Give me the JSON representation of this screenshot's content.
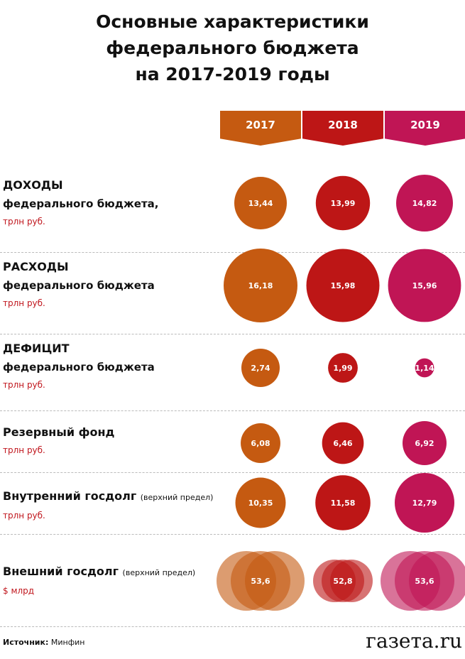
{
  "title_lines": [
    "Основные характеристики",
    "федерального бюджета",
    "на 2017-2019 годы"
  ],
  "colors": {
    "2017": "#c55a11",
    "2018": "#bd1616",
    "2019": "#c01555"
  },
  "chart_data": {
    "type": "bubble",
    "categories": [
      "2017",
      "2018",
      "2019"
    ],
    "series": [
      {
        "title": "ДОХОДЫ",
        "subtitle": "федерального бюджета,",
        "note": "",
        "unit": "трлн руб.",
        "values": [
          13.44,
          13.99,
          14.82
        ],
        "labels": [
          "13,44",
          "13,99",
          "14,82"
        ]
      },
      {
        "title": "РАСХОДЫ",
        "subtitle": "федерального бюджета",
        "note": "",
        "unit": "трлн руб.",
        "values": [
          16.18,
          15.98,
          15.96
        ],
        "labels": [
          "16,18",
          "15,98",
          "15,96"
        ]
      },
      {
        "title": "ДЕФИЦИТ",
        "subtitle": "федерального бюджета",
        "note": "",
        "unit": "трлн руб.",
        "values": [
          2.74,
          1.99,
          1.14
        ],
        "labels": [
          "2,74",
          "1,99",
          "1,14"
        ]
      },
      {
        "title": "Резервный фонд",
        "subtitle": "",
        "note": "",
        "unit": "трлн руб.",
        "values": [
          6.08,
          6.46,
          6.92
        ],
        "labels": [
          "6,08",
          "6,46",
          "6,92"
        ]
      },
      {
        "title": "Внутренний госдолг",
        "subtitle": "",
        "note": "(верхний предел)",
        "unit": "трлн руб.",
        "values": [
          10.35,
          11.58,
          12.79
        ],
        "labels": [
          "10,35",
          "11,58",
          "12,79"
        ]
      },
      {
        "title": "Внешний госдолг",
        "subtitle": "",
        "note": "(верхний предел)",
        "unit": "$ млрд",
        "values": [
          53.6,
          52.8,
          53.6
        ],
        "labels": [
          "53,6",
          "52,8",
          "53,6"
        ]
      }
    ]
  },
  "footer": {
    "source_label": "Источник:",
    "source_value": "Минфин",
    "logo": "газета.ru"
  }
}
